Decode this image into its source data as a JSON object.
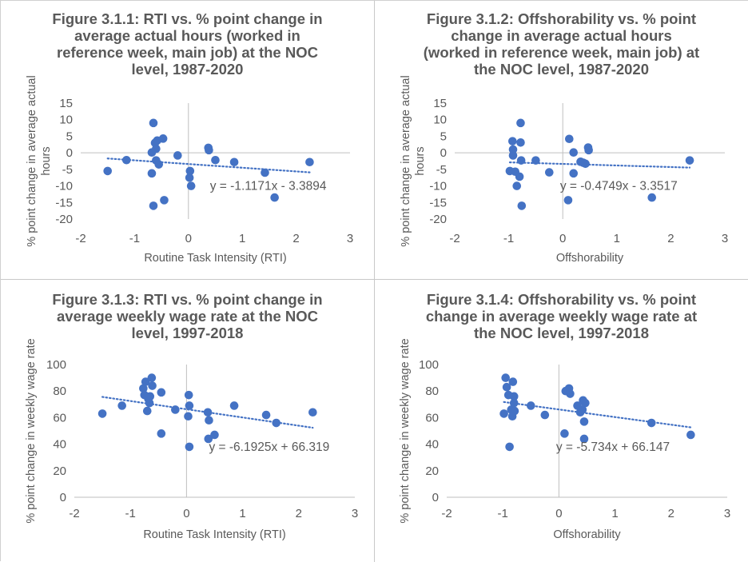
{
  "chart_data": [
    {
      "type": "scatter",
      "title_lines": [
        "Figure 3.1.1: RTI vs. % point change in",
        "average actual hours (worked in",
        "reference week, main job) at the NOC",
        "level, 1987-2020"
      ],
      "xlabel": "Routine Task Intensity (RTI)",
      "ylabel_lines": [
        "% point change in average actual",
        "hours"
      ],
      "xlim": [
        -2,
        3
      ],
      "ylim": [
        -20,
        15
      ],
      "xticks": [
        "-2",
        "-1",
        "0",
        "1",
        "2",
        "3"
      ],
      "yticks": [
        "15",
        "10",
        "5",
        "0",
        "-5",
        "-10",
        "-15",
        "-20"
      ],
      "trendline": {
        "slope": -1.1171,
        "intercept": -3.3894,
        "label": "y = -1.1171x - 3.3894"
      },
      "x": [
        -1.5,
        -1.15,
        -0.68,
        -0.65,
        -0.62,
        -0.6,
        -0.58,
        -0.55,
        -0.47,
        -0.45,
        -0.2,
        0.02,
        0.03,
        0.05,
        0.37,
        0.38,
        0.5,
        0.85,
        1.42,
        1.6,
        2.25,
        -0.68,
        -0.65,
        -0.6
      ],
      "y": [
        -5.5,
        -2.2,
        -6.2,
        9,
        3,
        1.2,
        3.7,
        -3.5,
        4.3,
        -14.3,
        -0.8,
        -7.5,
        -5.5,
        -10,
        1.5,
        0.8,
        -2.2,
        -2.8,
        -6,
        -13.5,
        -2.8,
        0.1,
        -16,
        -2.3
      ],
      "grid": false
    },
    {
      "type": "scatter",
      "title_lines": [
        "Figure 3.1.2: Offshorability vs. % point",
        "change in average actual hours",
        "(worked in reference week, main job) at",
        "the NOC level, 1987-2020"
      ],
      "xlabel": "Offshorability",
      "ylabel_lines": [
        "% point change in average actual",
        "hours"
      ],
      "xlim": [
        -2,
        3
      ],
      "ylim": [
        -20,
        15
      ],
      "xticks": [
        "-2",
        "-1",
        "0",
        "1",
        "2",
        "3"
      ],
      "yticks": [
        "15",
        "10",
        "5",
        "0",
        "-5",
        "-10",
        "-15",
        "-20"
      ],
      "trendline": {
        "slope": -0.4749,
        "intercept": -3.3517,
        "label": "y = -0.4749x - 3.3517"
      },
      "x": [
        -0.98,
        -0.93,
        -0.92,
        -0.92,
        -0.88,
        -0.85,
        -0.8,
        -0.78,
        -0.78,
        -0.77,
        -0.76,
        -0.5,
        -0.25,
        0.1,
        0.12,
        0.2,
        0.2,
        0.33,
        0.38,
        0.42,
        0.47,
        0.48,
        1.65,
        2.35
      ],
      "y": [
        -5.5,
        3.5,
        1.0,
        -0.8,
        -5.7,
        -10,
        -7.2,
        9,
        3.1,
        -2.3,
        -16,
        -2.3,
        -5.9,
        -14.3,
        4.2,
        0.1,
        -6.2,
        -2.7,
        -3,
        -3.3,
        1.6,
        0.8,
        -13.5,
        -2.3
      ],
      "grid": false
    },
    {
      "type": "scatter",
      "title_lines": [
        "Figure 3.1.3: RTI vs. %  point change in",
        "average weekly wage rate at the NOC",
        "level, 1997-2018"
      ],
      "xlabel": "Routine Task Intensity (RTI)",
      "ylabel_lines": [
        "% point change in weekly wage rate"
      ],
      "xlim": [
        -2,
        3
      ],
      "ylim": [
        0,
        100
      ],
      "xticks": [
        "-2",
        "-1",
        "0",
        "1",
        "2",
        "3"
      ],
      "yticks": [
        "100",
        "80",
        "60",
        "40",
        "20",
        "0"
      ],
      "trendline": {
        "slope": -6.1925,
        "intercept": 66.319,
        "label": "y = -6.1925x + 66.319"
      },
      "x": [
        -1.5,
        -1.15,
        -0.77,
        -0.75,
        -0.73,
        -0.7,
        -0.68,
        -0.66,
        -0.65,
        -0.62,
        -0.61,
        -0.45,
        -0.45,
        -0.2,
        0.03,
        0.04,
        0.05,
        0.05,
        0.38,
        0.39,
        0.4,
        0.5,
        0.85,
        1.42,
        1.6,
        2.25
      ],
      "y": [
        63,
        69,
        82,
        77,
        87,
        65,
        74,
        71,
        76,
        90,
        84,
        79,
        48,
        66,
        61,
        77,
        69,
        38,
        64,
        44,
        58,
        47,
        69,
        62,
        56,
        64
      ],
      "grid": false
    },
    {
      "type": "scatter",
      "title_lines": [
        "Figure 3.1.4: Offshorability vs. % point",
        "change in average weekly wage rate at",
        "the NOC level, 1997-2018"
      ],
      "xlabel": "Offshorability",
      "ylabel_lines": [
        "% point change in weekly wage rate"
      ],
      "xlim": [
        -2,
        3
      ],
      "ylim": [
        0,
        100
      ],
      "xticks": [
        "-2",
        "-1",
        "0",
        "1",
        "2",
        "3"
      ],
      "yticks": [
        "100",
        "80",
        "60",
        "40",
        "20",
        "0"
      ],
      "trendline": {
        "slope": -5.734,
        "intercept": 66.147,
        "label": "y = -5.734x + 66.147"
      },
      "x": [
        -0.98,
        -0.95,
        -0.93,
        -0.9,
        -0.88,
        -0.85,
        -0.83,
        -0.82,
        -0.8,
        -0.8,
        -0.79,
        -0.5,
        -0.25,
        0.1,
        0.12,
        0.18,
        0.2,
        0.33,
        0.38,
        0.42,
        0.43,
        0.45,
        0.45,
        0.47,
        1.65,
        2.35
      ],
      "y": [
        63,
        90,
        83,
        77,
        38,
        66,
        61,
        87,
        76,
        71,
        65,
        69,
        62,
        48,
        80,
        82,
        78,
        69,
        64,
        66,
        73,
        57,
        44,
        71,
        56,
        47
      ],
      "grid": false
    }
  ],
  "colors": {
    "marker": "#4472c4",
    "trendline": "#4472c4",
    "axis": "#bfbfbf",
    "text": "#595959",
    "title": "#595959"
  }
}
